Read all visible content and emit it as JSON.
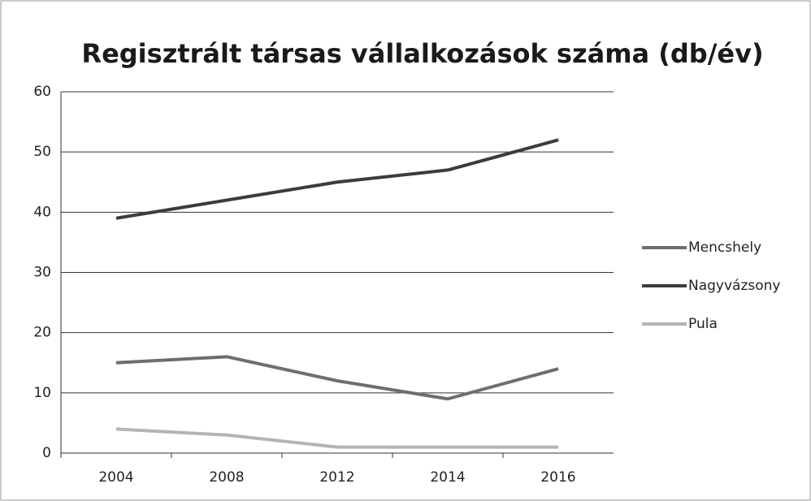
{
  "chart_data": {
    "type": "line",
    "title": "Regisztrált társas vállalkozások száma (db/év)",
    "categories": [
      "2004",
      "2008",
      "2012",
      "2014",
      "2016"
    ],
    "series": [
      {
        "name": "Mencshely",
        "color": "#6e6e6e",
        "values": [
          15,
          16,
          12,
          9,
          14
        ]
      },
      {
        "name": "Nagyvázsony",
        "color": "#3c3c3c",
        "values": [
          39,
          42,
          45,
          47,
          52
        ]
      },
      {
        "name": "Pula",
        "color": "#b4b4b4",
        "values": [
          4,
          3,
          1,
          1,
          1
        ]
      }
    ],
    "ylim": [
      0,
      60
    ],
    "yticks": [
      0,
      10,
      20,
      30,
      40,
      50,
      60
    ],
    "grid": true,
    "legend": "right"
  }
}
